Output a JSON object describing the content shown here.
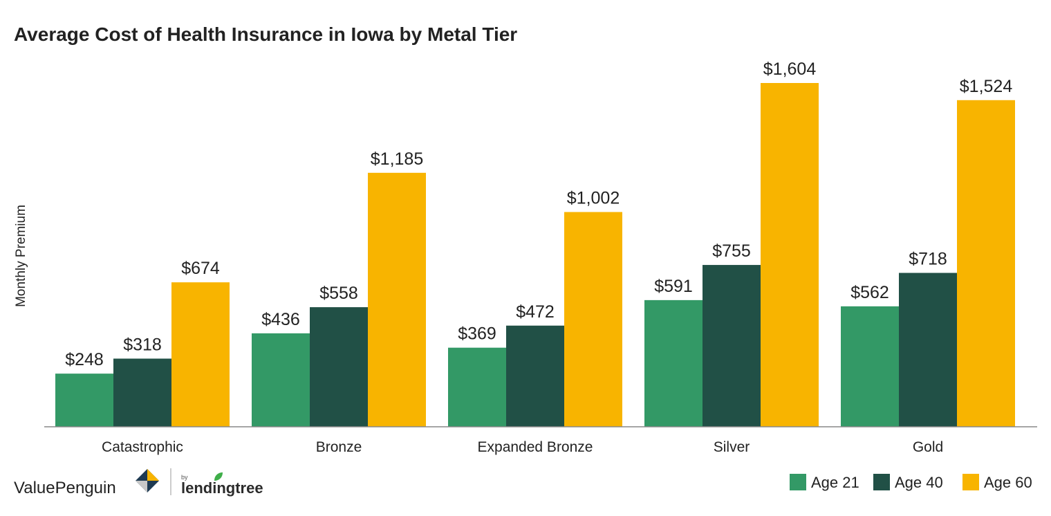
{
  "brand": {
    "name": "ValuePenguin",
    "by": "by",
    "partner": "lendingtree"
  },
  "chart_data": {
    "type": "bar",
    "title": "Average Cost of Health Insurance in Iowa by Metal Tier",
    "xlabel": "",
    "ylabel": "Monthly Premium",
    "ylim": [
      0,
      1700
    ],
    "grid": false,
    "legend_position": "bottom-right",
    "categories": [
      "Catastrophic",
      "Bronze",
      "Expanded Bronze",
      "Silver",
      "Gold"
    ],
    "series": [
      {
        "name": "Age 21",
        "color": "#339966",
        "values": [
          248,
          436,
          369,
          591,
          562
        ],
        "labels": [
          "$248",
          "$436",
          "$369",
          "$591",
          "$562"
        ]
      },
      {
        "name": "Age 40",
        "color": "#215046",
        "values": [
          318,
          558,
          472,
          755,
          718
        ],
        "labels": [
          "$318",
          "$558",
          "$472",
          "$755",
          "$718"
        ]
      },
      {
        "name": "Age 60",
        "color": "#f8b400",
        "values": [
          674,
          1185,
          1002,
          1604,
          1524
        ],
        "labels": [
          "$674",
          "$1,185",
          "$1,002",
          "$1,604",
          "$1,524"
        ]
      }
    ]
  }
}
